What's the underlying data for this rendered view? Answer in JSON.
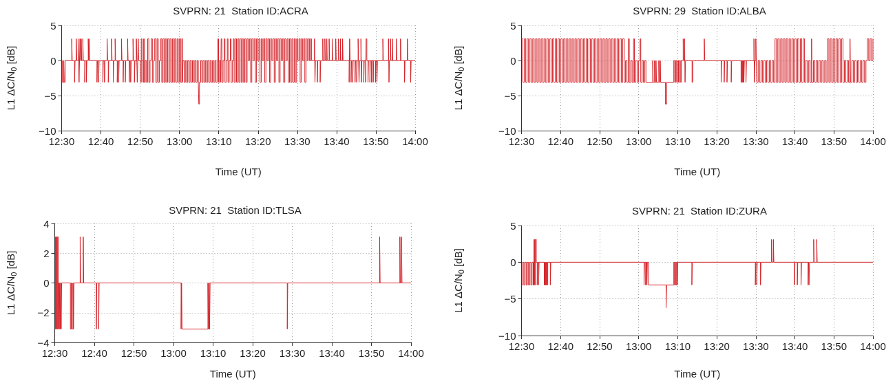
{
  "chart_data": [
    {
      "type": "step",
      "title": "SVPRN: 21  Station ID:ACRA",
      "xlabel": "Time (UT)",
      "ylabel": "L1 ΔC/N$_{0}$ [dB]",
      "color": "#d42329",
      "grid": true,
      "xlim": [
        12.5,
        14
      ],
      "xticks": [
        {
          "value": 12.5,
          "label": "12:30"
        },
        {
          "value": 12.6667,
          "label": "12:40"
        },
        {
          "value": 12.8333,
          "label": "12:50"
        },
        {
          "value": 13,
          "label": "13:00"
        },
        {
          "value": 13.1667,
          "label": "13:10"
        },
        {
          "value": 13.3333,
          "label": "13:20"
        },
        {
          "value": 13.5,
          "label": "13:30"
        },
        {
          "value": 13.6667,
          "label": "13:40"
        },
        {
          "value": 13.8333,
          "label": "13:50"
        },
        {
          "value": 14,
          "label": "14:00"
        }
      ],
      "ylim": [
        -10,
        5
      ],
      "yticks": [
        {
          "value": -10,
          "label": "−10"
        },
        {
          "value": -5,
          "label": "−5"
        },
        0,
        5
      ],
      "x": [
        12.5,
        12.503,
        12.509,
        12.511,
        12.515,
        12.543,
        12.545,
        12.555,
        12.557,
        12.562,
        12.564,
        12.57,
        12.572,
        12.574,
        12.576,
        12.578,
        12.58,
        12.583,
        12.585,
        12.59,
        12.592,
        12.598,
        12.6,
        12.605,
        12.607,
        12.613,
        12.615,
        12.617,
        12.619,
        12.65,
        12.652,
        12.657,
        12.659,
        12.675,
        12.677,
        12.682,
        12.684,
        12.693,
        12.695,
        12.698,
        12.7,
        12.712,
        12.714,
        12.719,
        12.721,
        12.727,
        12.729,
        12.736,
        12.738,
        12.742,
        12.744,
        12.754,
        12.756,
        12.761,
        12.763,
        12.77,
        12.772,
        12.78,
        12.782,
        12.787,
        12.789,
        12.793,
        12.795,
        12.803,
        12.805,
        12.809,
        12.811,
        12.817,
        12.819,
        12.821,
        12.823,
        12.825,
        12.827,
        12.835,
        12.838,
        12.841,
        12.845,
        12.848,
        12.851,
        12.855,
        12.86,
        12.865,
        12.87,
        12.875,
        12.88,
        12.885,
        12.89,
        12.895,
        12.9,
        12.905,
        12.91,
        12.915,
        12.92,
        12.925,
        12.93,
        12.935,
        12.94,
        12.945,
        12.95,
        12.955,
        12.96,
        12.965,
        12.97,
        12.975,
        12.98,
        12.985,
        12.99,
        12.995,
        13.0,
        13.005,
        13.01,
        13.013,
        13.015,
        13.02,
        13.025,
        13.03,
        13.035,
        13.04,
        13.045,
        13.05,
        13.055,
        13.06,
        13.065,
        13.07,
        13.075,
        13.08,
        13.082,
        13.085,
        13.09,
        13.095,
        13.1,
        13.105,
        13.11,
        13.115,
        13.12,
        13.125,
        13.13,
        13.135,
        13.14,
        13.145,
        13.15,
        13.155,
        13.16,
        13.163,
        13.166,
        13.17,
        13.175,
        13.177,
        13.18,
        13.185,
        13.19,
        13.193,
        13.198,
        13.203,
        13.206,
        13.211,
        13.216,
        13.219,
        13.224,
        13.229,
        13.232,
        13.237,
        13.242,
        13.247,
        13.252,
        13.257,
        13.262,
        13.267,
        13.272,
        13.277,
        13.282,
        13.287,
        13.292,
        13.297,
        13.302,
        13.307,
        13.312,
        13.317,
        13.322,
        13.327,
        13.332,
        13.337,
        13.342,
        13.347,
        13.352,
        13.357,
        13.362,
        13.367,
        13.372,
        13.377,
        13.382,
        13.387,
        13.392,
        13.397,
        13.402,
        13.407,
        13.412,
        13.417,
        13.422,
        13.427,
        13.432,
        13.437,
        13.442,
        13.447,
        13.452,
        13.457,
        13.462,
        13.467,
        13.472,
        13.477,
        13.482,
        13.487,
        13.492,
        13.497,
        13.502,
        13.507,
        13.512,
        13.517,
        13.522,
        13.527,
        13.532,
        13.537,
        13.542,
        13.547,
        13.552,
        13.557,
        13.56,
        13.573,
        13.575,
        13.577,
        13.585,
        13.587,
        13.597,
        13.599,
        13.608,
        13.61,
        13.617,
        13.619,
        13.625,
        13.627,
        13.635,
        13.637,
        13.648,
        13.65,
        13.663,
        13.665,
        13.675,
        13.677,
        13.683,
        13.685,
        13.692,
        13.694,
        13.72,
        13.722,
        13.724,
        13.728,
        13.73,
        13.735,
        13.737,
        13.745,
        13.747,
        13.752,
        13.754,
        13.758,
        13.76,
        13.762,
        13.764,
        13.77,
        13.772,
        13.774,
        13.782,
        13.784,
        13.79,
        13.792,
        13.795,
        13.8,
        13.802,
        13.808,
        13.81,
        13.815,
        13.817,
        13.822,
        13.824,
        13.832,
        13.834,
        13.838,
        13.84,
        13.863,
        13.865,
        13.887,
        13.889,
        13.891,
        13.895,
        13.897,
        13.903,
        13.905,
        13.92,
        13.922,
        13.938,
        13.94,
        13.955,
        13.957,
        13.967,
        13.969,
        13.981,
        13.983,
        14.0
      ],
      "values": [
        0,
        -3.1,
        0,
        -3.1,
        0,
        3.1,
        0,
        -3.1,
        0,
        3.1,
        0,
        3.1,
        0,
        -3.1,
        0,
        3.1,
        0,
        3.1,
        0,
        3.1,
        0,
        -3.1,
        0,
        -3.1,
        0,
        3.1,
        0,
        3.1,
        0,
        -3.1,
        0,
        -3.1,
        0,
        -3.1,
        0,
        -3.1,
        0,
        3.1,
        0,
        -3.1,
        0,
        3.1,
        0,
        -3.1,
        0,
        3.1,
        0,
        -3.1,
        0,
        -3.1,
        0,
        3.1,
        0,
        -3.1,
        0,
        -3.1,
        0,
        3.1,
        0,
        -3.1,
        0,
        -3.1,
        0,
        3.1,
        0,
        -3.1,
        0,
        3.1,
        0,
        -3.1,
        0,
        3.1,
        0,
        -3.1,
        3.1,
        0,
        -3.1,
        3.1,
        -3.1,
        0,
        -3.1,
        3.1,
        -3.1,
        0,
        3.1,
        -3.1,
        0,
        3.1,
        -3.1,
        3.1,
        -3.1,
        0,
        3.1,
        -3.1,
        3.1,
        -3.1,
        3.1,
        -3.1,
        3.1,
        -3.1,
        3.1,
        -3.1,
        3.1,
        -3.1,
        3.1,
        -3.1,
        3.1,
        -3.1,
        3.1,
        -3.1,
        3.1,
        -3.1,
        0,
        -3.1,
        0,
        -3.1,
        0,
        -3.1,
        0,
        -3.1,
        0,
        -3.1,
        0,
        -3.1,
        0,
        -3.1,
        -6.2,
        -3.1,
        0,
        -3.1,
        0,
        -3.1,
        0,
        -3.1,
        0,
        -3.1,
        0,
        -3.1,
        0,
        -3.1,
        0,
        -3.1,
        0,
        3.1,
        -3.1,
        0,
        -3.1,
        3.1,
        -3.1,
        0,
        3.1,
        -3.1,
        0,
        3.1,
        -3.1,
        0,
        3.1,
        -3.1,
        0,
        3.1,
        -3.1,
        3.1,
        -3.1,
        3.1,
        -3.1,
        3.1,
        -3.1,
        3.1,
        -3.1,
        3.1,
        -3.1,
        3.1,
        0,
        3.1,
        -3.1,
        3.1,
        0,
        3.1,
        -3.1,
        3.1,
        0,
        3.1,
        -3.1,
        3.1,
        0,
        3.1,
        -3.1,
        3.1,
        0,
        3.1,
        -3.1,
        3.1,
        0,
        3.1,
        -3.1,
        3.1,
        0,
        3.1,
        -3.1,
        3.1,
        0,
        3.1,
        -3.1,
        3.1,
        0,
        3.1,
        -3.1,
        3.1,
        -3.1,
        3.1,
        -3.1,
        3.1,
        -3.1,
        3.1,
        0,
        3.1,
        -3.1,
        3.1,
        0,
        3.1,
        -3.1,
        3.1,
        0,
        3.1,
        0,
        3.1,
        0,
        3.1,
        -3.1,
        0,
        -3.1,
        0,
        -3.1,
        0,
        3.1,
        0,
        3.1,
        0,
        3.1,
        0,
        3.1,
        0,
        3.1,
        0,
        3.1,
        0,
        3.1,
        0,
        3.1,
        0,
        3.1,
        0,
        -3.1,
        3.1,
        0,
        -3.1,
        0,
        -3.1,
        0,
        -3.1,
        0,
        -3.1,
        0,
        3.1,
        0,
        -3.1,
        0,
        3.1,
        -3.1,
        0,
        -3.1,
        0,
        -3.1,
        3.1,
        0,
        -3.1,
        0,
        -3.1,
        0,
        -3.1,
        0,
        -3.1,
        0,
        -3.1,
        0,
        -3.1,
        0,
        3.1,
        0,
        3.1,
        -3.1,
        0,
        3.1,
        0,
        3.1,
        0,
        3.1,
        0,
        3.1,
        0,
        -3.1,
        0,
        3.1,
        0,
        -3.1,
        0,
        0
      ]
    },
    {
      "type": "step",
      "title": "SVPRN: 29  Station ID:ALBA",
      "xlabel": "Time (UT)",
      "ylabel": "L1 ΔC/N$_{0}$ [dB]",
      "color": "#d42329",
      "grid": true,
      "xlim": [
        12.5,
        14
      ],
      "xticks": [
        {
          "value": 12.5,
          "label": "12:30"
        },
        {
          "value": 12.6667,
          "label": "12:40"
        },
        {
          "value": 12.8333,
          "label": "12:50"
        },
        {
          "value": 13,
          "label": "13:00"
        },
        {
          "value": 13.1667,
          "label": "13:10"
        },
        {
          "value": 13.3333,
          "label": "13:20"
        },
        {
          "value": 13.5,
          "label": "13:30"
        },
        {
          "value": 13.6667,
          "label": "13:40"
        },
        {
          "value": 13.8333,
          "label": "13:50"
        },
        {
          "value": 14,
          "label": "14:00"
        }
      ],
      "ylim": [
        -10,
        5
      ],
      "yticks": [
        {
          "value": -10,
          "label": "−10"
        },
        {
          "value": -5,
          "label": "−5"
        },
        0,
        5
      ],
      "x": [
        12.5,
        12.506,
        12.512,
        12.518,
        12.524,
        12.53,
        12.536,
        12.542,
        12.548,
        12.554,
        12.56,
        12.566,
        12.572,
        12.578,
        12.584,
        12.59,
        12.596,
        12.602,
        12.608,
        12.614,
        12.62,
        12.626,
        12.632,
        12.638,
        12.644,
        12.65,
        12.656,
        12.662,
        12.668,
        12.674,
        12.68,
        12.686,
        12.692,
        12.698,
        12.704,
        12.71,
        12.716,
        12.722,
        12.728,
        12.734,
        12.74,
        12.746,
        12.752,
        12.758,
        12.764,
        12.77,
        12.776,
        12.782,
        12.788,
        12.794,
        12.8,
        12.806,
        12.812,
        12.818,
        12.824,
        12.83,
        12.836,
        12.842,
        12.848,
        12.854,
        12.86,
        12.866,
        12.872,
        12.878,
        12.884,
        12.89,
        12.896,
        12.902,
        12.908,
        12.914,
        12.92,
        12.926,
        12.932,
        12.938,
        12.944,
        12.95,
        12.956,
        12.96,
        12.966,
        12.972,
        12.978,
        12.982,
        12.988,
        12.994,
        13.0,
        13.006,
        13.009,
        13.015,
        13.02,
        13.026,
        13.031,
        13.06,
        13.062,
        13.068,
        13.07,
        13.074,
        13.076,
        13.086,
        13.088,
        13.092,
        13.094,
        13.114,
        13.12,
        13.15,
        13.154,
        13.158,
        13.162,
        13.166,
        13.17,
        13.174,
        13.178,
        13.182,
        13.19,
        13.192,
        13.196,
        13.198,
        13.2,
        13.228,
        13.231,
        13.28,
        13.282,
        13.352,
        13.354,
        13.365,
        13.367,
        13.377,
        13.379,
        13.395,
        13.397,
        13.437,
        13.44,
        13.443,
        13.446,
        13.449,
        13.451,
        13.458,
        13.46,
        13.492,
        13.494,
        13.496,
        13.5,
        13.502,
        13.504,
        13.51,
        13.516,
        13.522,
        13.528,
        13.534,
        13.54,
        13.546,
        13.552,
        13.558,
        13.564,
        13.57,
        13.576,
        13.582,
        13.588,
        13.594,
        13.6,
        13.606,
        13.612,
        13.618,
        13.624,
        13.63,
        13.636,
        13.642,
        13.648,
        13.654,
        13.66,
        13.666,
        13.672,
        13.678,
        13.684,
        13.69,
        13.696,
        13.702,
        13.708,
        13.714,
        13.72,
        13.726,
        13.732,
        13.738,
        13.74,
        13.746,
        13.752,
        13.758,
        13.764,
        13.77,
        13.776,
        13.782,
        13.788,
        13.794,
        13.8,
        13.806,
        13.812,
        13.818,
        13.824,
        13.83,
        13.836,
        13.842,
        13.848,
        13.854,
        13.86,
        13.866,
        13.872,
        13.878,
        13.884,
        13.89,
        13.896,
        13.902,
        13.904,
        13.91,
        13.916,
        13.922,
        13.928,
        13.934,
        13.94,
        13.946,
        13.952,
        13.958,
        13.964,
        13.97,
        13.976,
        13.982,
        13.988,
        13.994,
        14.0
      ],
      "values": [
        3.1,
        -3.1,
        3.1,
        -3.1,
        3.1,
        -3.1,
        3.1,
        -3.1,
        3.1,
        -3.1,
        3.1,
        -3.1,
        3.1,
        -3.1,
        3.1,
        -3.1,
        3.1,
        -3.1,
        3.1,
        -3.1,
        3.1,
        -3.1,
        3.1,
        -3.1,
        3.1,
        -3.1,
        3.1,
        -3.1,
        3.1,
        -3.1,
        3.1,
        -3.1,
        3.1,
        -3.1,
        3.1,
        -3.1,
        3.1,
        -3.1,
        3.1,
        -3.1,
        3.1,
        -3.1,
        3.1,
        -3.1,
        3.1,
        -3.1,
        3.1,
        -3.1,
        3.1,
        -3.1,
        3.1,
        -3.1,
        3.1,
        -3.1,
        3.1,
        -3.1,
        3.1,
        -3.1,
        3.1,
        -3.1,
        3.1,
        -3.1,
        3.1,
        -3.1,
        3.1,
        -3.1,
        3.1,
        -3.1,
        3.1,
        -3.1,
        3.1,
        -3.1,
        3.1,
        -3.1,
        0,
        -3.1,
        3.1,
        -3.1,
        0,
        -3.1,
        3.1,
        -3.1,
        0,
        -3.1,
        0,
        3.1,
        -3.1,
        0,
        -3.1,
        0,
        -3.1,
        0,
        -3.1,
        0,
        -3.1,
        0,
        -3.1,
        0,
        -3.1,
        0,
        -3.1,
        -6.2,
        -3.1,
        0,
        -3.1,
        0,
        -3.1,
        0,
        -3.1,
        0,
        -3.1,
        0,
        3.1,
        0,
        3.1,
        -3.1,
        0,
        -3.1,
        0,
        3.1,
        0,
        -3.1,
        0,
        -3.1,
        0,
        -3.1,
        0,
        -3.1,
        0,
        -3.1,
        0,
        -3.1,
        0,
        -3.1,
        0,
        -3.1,
        0,
        3.1,
        -3.1,
        0,
        3.1,
        0,
        -3.1,
        0,
        -3.1,
        0,
        -3.1,
        0,
        -3.1,
        0,
        -3.1,
        0,
        -3.1,
        0,
        -3.1,
        3.1,
        -3.1,
        3.1,
        -3.1,
        3.1,
        -3.1,
        3.1,
        -3.1,
        3.1,
        -3.1,
        3.1,
        -3.1,
        3.1,
        -3.1,
        3.1,
        -3.1,
        3.1,
        -3.1,
        3.1,
        -3.1,
        3.1,
        -3.1,
        0,
        -3.1,
        0,
        -3.1,
        3.1,
        -3.1,
        0,
        -3.1,
        0,
        -3.1,
        0,
        -3.1,
        0,
        -3.1,
        0,
        -3.1,
        3.1,
        -3.1,
        3.1,
        -3.1,
        3.1,
        -3.1,
        3.1,
        -3.1,
        3.1,
        -3.1,
        3.1,
        -3.1,
        0,
        -3.1,
        0,
        -3.1,
        3.1,
        -3.1,
        0,
        -3.1,
        0,
        -3.1,
        0,
        -3.1,
        0,
        -3.1,
        0,
        -3.1,
        0,
        3.1,
        0,
        3.1,
        0,
        3.1
      ]
    },
    {
      "type": "step",
      "title": "SVPRN: 21  Station ID:TLSA",
      "xlabel": "Time (UT)",
      "ylabel": "L1 ΔC/N$_{0}$ [dB]",
      "color": "#d42329",
      "grid": true,
      "xlim": [
        12.5,
        14
      ],
      "xticks": [
        {
          "value": 12.5,
          "label": "12:30"
        },
        {
          "value": 12.6667,
          "label": "12:40"
        },
        {
          "value": 12.8333,
          "label": "12:50"
        },
        {
          "value": 13,
          "label": "13:00"
        },
        {
          "value": 13.1667,
          "label": "13:10"
        },
        {
          "value": 13.3333,
          "label": "13:20"
        },
        {
          "value": 13.5,
          "label": "13:30"
        },
        {
          "value": 13.6667,
          "label": "13:40"
        },
        {
          "value": 13.8333,
          "label": "13:50"
        },
        {
          "value": 14,
          "label": "14:00"
        }
      ],
      "ylim": [
        -4,
        4
      ],
      "yticks": [
        {
          "value": -4,
          "label": "−4"
        },
        {
          "value": -2,
          "label": "−2"
        },
        0,
        2,
        4
      ],
      "x": [
        12.5,
        12.503,
        12.506,
        12.509,
        12.512,
        12.515,
        12.517,
        12.519,
        12.521,
        12.523,
        12.525,
        12.527,
        12.529,
        12.566,
        12.57,
        12.573,
        12.577,
        12.579,
        12.581,
        12.607,
        12.609,
        12.62,
        12.622,
        12.675,
        12.677,
        12.685,
        12.687,
        13.032,
        13.034,
        13.036,
        13.145,
        13.147,
        13.15,
        13.152,
        13.154,
        13.479,
        13.481,
        13.868,
        13.87,
        13.953,
        13.955,
        13.96,
        13.962,
        14.0
      ],
      "values": [
        3.1,
        -3.1,
        3.1,
        -3.1,
        3.1,
        -3.1,
        0,
        -3.1,
        0,
        -3.1,
        0,
        -3.1,
        0,
        -3.1,
        0,
        -3.1,
        0,
        -3.1,
        0,
        3.1,
        0,
        3.1,
        0,
        -3.1,
        0,
        -3.1,
        0,
        -3.1,
        0,
        -3.1,
        0,
        -3.1,
        0,
        -3.1,
        0,
        -3.1,
        0,
        3.1,
        0,
        3.1,
        0,
        3.1,
        0,
        0
      ]
    },
    {
      "type": "step",
      "title": "SVPRN: 21  Station ID:ZURA",
      "xlabel": "Time (UT)",
      "ylabel": "L1 ΔC/N$_{0}$ [dB]",
      "color": "#d42329",
      "grid": true,
      "xlim": [
        12.5,
        14
      ],
      "xticks": [
        {
          "value": 12.5,
          "label": "12:30"
        },
        {
          "value": 12.6667,
          "label": "12:40"
        },
        {
          "value": 12.8333,
          "label": "12:50"
        },
        {
          "value": 13,
          "label": "13:00"
        },
        {
          "value": 13.1667,
          "label": "13:10"
        },
        {
          "value": 13.3333,
          "label": "13:20"
        },
        {
          "value": 13.5,
          "label": "13:30"
        },
        {
          "value": 13.6667,
          "label": "13:40"
        },
        {
          "value": 13.8333,
          "label": "13:50"
        },
        {
          "value": 14,
          "label": "14:00"
        }
      ],
      "ylim": [
        -10,
        5
      ],
      "yticks": [
        {
          "value": -10,
          "label": "−10"
        },
        {
          "value": -5,
          "label": "−5"
        },
        0,
        5
      ],
      "x": [
        12.5,
        12.505,
        12.51,
        12.515,
        12.52,
        12.525,
        12.53,
        12.535,
        12.54,
        12.545,
        12.55,
        12.553,
        12.556,
        12.559,
        12.563,
        12.567,
        12.569,
        12.573,
        12.575,
        12.597,
        12.6,
        12.603,
        12.606,
        12.609,
        12.612,
        12.623,
        12.625,
        13.023,
        13.025,
        13.03,
        13.032,
        13.035,
        13.037,
        13.042,
        13.117,
        13.119,
        13.15,
        13.153,
        13.156,
        13.159,
        13.162,
        13.165,
        13.167,
        13.227,
        13.229,
        13.498,
        13.5,
        13.504,
        13.506,
        13.52,
        13.522,
        13.567,
        13.569,
        13.575,
        13.577,
        13.665,
        13.667,
        13.677,
        13.679,
        13.693,
        13.695,
        13.723,
        13.725,
        13.727,
        13.729,
        13.747,
        13.749,
        13.76,
        13.762,
        14.0
      ],
      "values": [
        -3.1,
        0,
        -3.1,
        0,
        -3.1,
        0,
        -3.1,
        0,
        -3.1,
        0,
        -3.1,
        3.1,
        -3.1,
        3.1,
        0,
        -3.1,
        0,
        -3.1,
        0,
        -3.1,
        0,
        -3.1,
        0,
        -3.1,
        0,
        -3.1,
        0,
        -3.1,
        0,
        -3.1,
        0,
        -3.1,
        0,
        -3.1,
        -6.2,
        -3.1,
        0,
        -3.1,
        0,
        -3.1,
        0,
        -3.1,
        0,
        -3.1,
        0,
        -3.1,
        0,
        -3.1,
        0,
        -3.1,
        0,
        3.1,
        0,
        3.1,
        0,
        -3.1,
        0,
        -3.1,
        0,
        -3.1,
        0,
        -3.1,
        0,
        -3.1,
        0,
        3.1,
        0,
        3.1,
        0,
        0
      ]
    }
  ]
}
